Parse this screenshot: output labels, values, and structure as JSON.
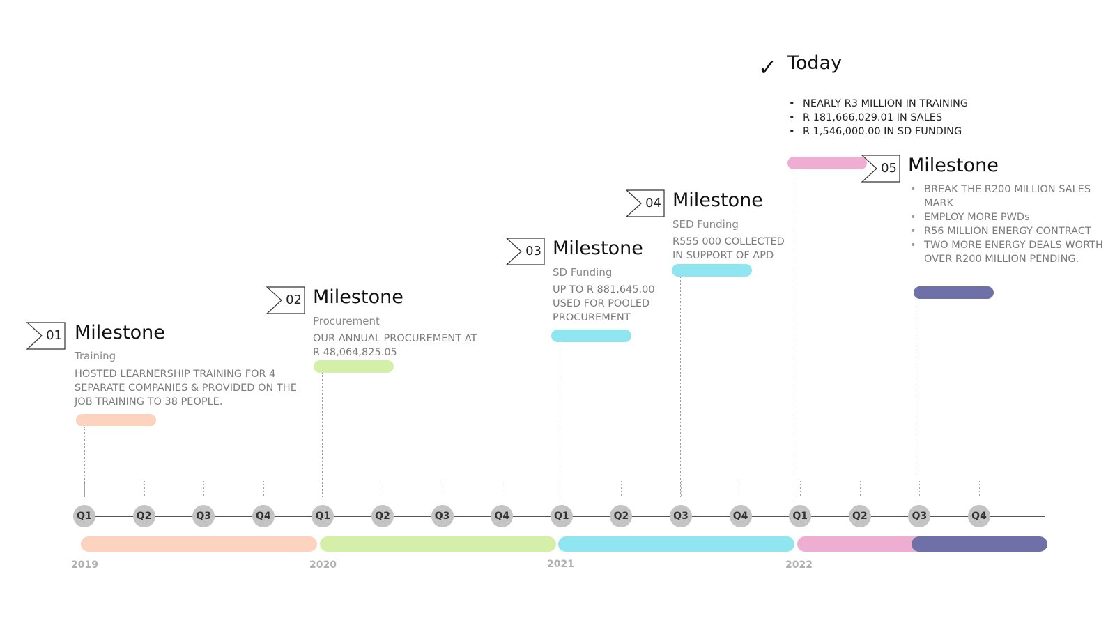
{
  "today": {
    "check_glyph": "✓",
    "title": "Today",
    "items": [
      "NEARLY R3 MILLION IN TRAINING",
      "R 181,666,029.01 IN SALES",
      "R 1,546,000.00 IN SD FUNDING"
    ]
  },
  "milestones": [
    {
      "number": "01",
      "title": "Milestone",
      "subtitle": "Training",
      "description": "HOSTED LEARNERSHIP TRAINING FOR 4 SEPARATE COMPANIES & PROVIDED ON THE JOB TRAINING TO 38 PEOPLE.",
      "color": "#fbd3bf"
    },
    {
      "number": "02",
      "title": "Milestone",
      "subtitle": "Procurement",
      "description": "OUR ANNUAL PROCUREMENT AT R 48,064,825.05",
      "color": "#d4f0a8"
    },
    {
      "number": "03",
      "title": "Milestone",
      "subtitle": "SD Funding",
      "description": "UP TO R 881,645.00 USED FOR POOLED PROCUREMENT",
      "color": "#8fe6f0"
    },
    {
      "number": "04",
      "title": "Milestone",
      "subtitle": "SED Funding",
      "description": "R555 000 COLLECTED IN SUPPORT OF APD",
      "color": "#8fe6f0"
    },
    {
      "number": "05",
      "title": "Milestone",
      "items": [
        "BREAK THE R200 MILLION SALES MARK",
        "EMPLOY MORE PWDs",
        "R56 MILLION ENERGY CONTRACT",
        "TWO MORE ENERGY DEALS WORTH OVER R200 MILLION PENDING."
      ],
      "color": "#7070a8"
    }
  ],
  "today_color": "#eeaed2",
  "quarters": [
    "Q1",
    "Q2",
    "Q3",
    "Q4",
    "Q1",
    "Q2",
    "Q3",
    "Q4",
    "Q1",
    "Q2",
    "Q3",
    "Q4",
    "Q1",
    "Q2",
    "Q3",
    "Q4"
  ],
  "years": [
    {
      "label": "2019",
      "color": "#fbd3bf"
    },
    {
      "label": "2020",
      "color": "#d4f0a8"
    },
    {
      "label": "2021",
      "color": "#8fe6f0"
    },
    {
      "label": "2022",
      "color": "#eeaed2"
    }
  ],
  "final_segment_color": "#7070a8"
}
